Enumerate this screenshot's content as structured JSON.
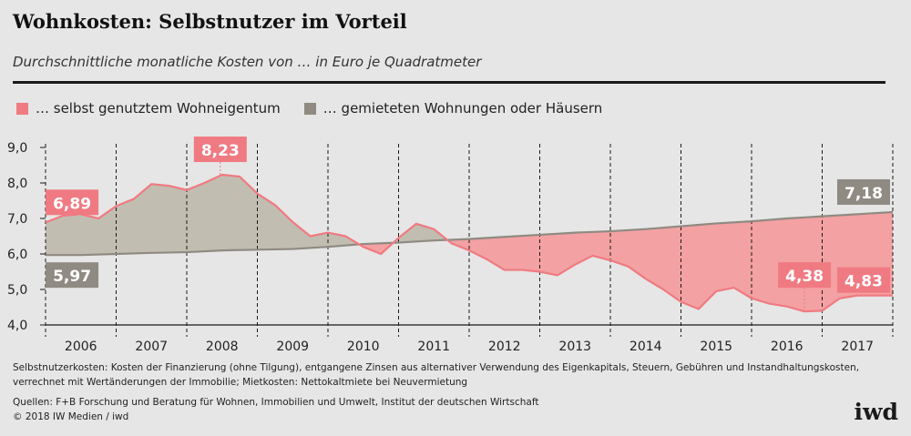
{
  "header": {
    "title": "Wohnkosten: Selbstnutzer im Vorteil",
    "subtitle": "Durchschnittliche monatliche Kosten von … in Euro je Quadratmeter"
  },
  "legend": {
    "owner_label": "… selbst genutztem Wohneigentum",
    "renter_label": "… gemieteten Wohnungen oder Häusern"
  },
  "colors": {
    "owner": "#f07a82",
    "owner_label_bg": "#f07a82",
    "renter": "#8f8a82",
    "fill_owner_higher": "#c2bdb1",
    "fill_renter_higher": "#f3a1a2",
    "background": "#e6e6e6"
  },
  "chart_data": {
    "type": "area",
    "title": "Wohnkosten: Selbstnutzer im Vorteil",
    "ylabel": "",
    "xlabel": "",
    "ylim": [
      4.0,
      9.0
    ],
    "y_ticks": [
      "4,0",
      "5,0",
      "6,0",
      "7,0",
      "8,0",
      "9,0"
    ],
    "x_range": [
      2005.625,
      2017.625
    ],
    "years": [
      "2006",
      "2007",
      "2008",
      "2009",
      "2010",
      "2011",
      "2012",
      "2013",
      "2014",
      "2015",
      "2016",
      "2017"
    ],
    "grid": "vertical dashed lines at year boundaries",
    "series": [
      {
        "name": "… selbst genutztem Wohneigentum",
        "x": [
          2005.625,
          2005.875,
          2006.125,
          2006.375,
          2006.625,
          2006.875,
          2007.125,
          2007.375,
          2007.625,
          2007.875,
          2008.125,
          2008.375,
          2008.625,
          2008.875,
          2009.125,
          2009.375,
          2009.625,
          2009.875,
          2010.125,
          2010.375,
          2010.625,
          2010.875,
          2011.125,
          2011.375,
          2011.625,
          2011.875,
          2012.125,
          2012.375,
          2012.625,
          2012.875,
          2013.125,
          2013.375,
          2013.625,
          2013.875,
          2014.125,
          2014.375,
          2014.625,
          2014.875,
          2015.125,
          2015.375,
          2015.625,
          2015.875,
          2016.125,
          2016.375,
          2016.625,
          2016.875,
          2017.125,
          2017.375,
          2017.625
        ],
        "values": [
          6.89,
          7.08,
          7.12,
          7.0,
          7.35,
          7.55,
          7.97,
          7.92,
          7.8,
          8.0,
          8.23,
          8.18,
          7.7,
          7.38,
          6.9,
          6.5,
          6.6,
          6.5,
          6.2,
          6.0,
          6.45,
          6.85,
          6.7,
          6.3,
          6.1,
          5.85,
          5.55,
          5.55,
          5.5,
          5.4,
          5.7,
          5.95,
          5.82,
          5.65,
          5.3,
          5.0,
          4.65,
          4.45,
          4.95,
          5.05,
          4.75,
          4.6,
          4.52,
          4.38,
          4.4,
          4.75,
          4.83,
          4.83,
          4.83
        ]
      },
      {
        "name": "… gemieteten Wohnungen oder Häusern",
        "x": [
          2005.625,
          2006.125,
          2006.625,
          2007.125,
          2007.625,
          2008.125,
          2008.625,
          2009.125,
          2009.625,
          2010.125,
          2010.625,
          2011.125,
          2011.625,
          2012.125,
          2012.625,
          2013.125,
          2013.625,
          2014.125,
          2014.625,
          2015.125,
          2015.625,
          2016.125,
          2016.625,
          2017.125,
          2017.625
        ],
        "values": [
          5.97,
          5.97,
          6.0,
          6.03,
          6.05,
          6.1,
          6.12,
          6.14,
          6.2,
          6.28,
          6.32,
          6.38,
          6.42,
          6.48,
          6.54,
          6.6,
          6.64,
          6.7,
          6.78,
          6.86,
          6.92,
          7.0,
          7.06,
          7.12,
          7.18
        ]
      }
    ],
    "data_labels": [
      {
        "text": "6,89",
        "series": "owner",
        "x": 2006.0,
        "y": 6.89
      },
      {
        "text": "8,23",
        "series": "owner",
        "x": 2008.1,
        "y": 8.23
      },
      {
        "text": "5,97",
        "series": "renter",
        "x": 2006.0,
        "y": 5.97
      },
      {
        "text": "7,18",
        "series": "renter",
        "x": 2017.625,
        "y": 7.18
      },
      {
        "text": "4,38",
        "series": "owner",
        "x": 2016.375,
        "y": 4.38
      },
      {
        "text": "4,83",
        "series": "owner",
        "x": 2017.625,
        "y": 4.83
      }
    ]
  },
  "footnotes": {
    "definition": "Selbstnutzerkosten: Kosten der Finanzierung (ohne Tilgung), entgangene Zinsen aus alternativer Verwendung des Eigenkapitals, Steuern, Gebühren und Instandhaltungskosten, verrechnet mit Wertänderungen der Immobilie; Mietkosten: Nettokaltmiete bei Neuvermietung",
    "sources": "Quellen: F+B Forschung und Beratung für Wohnen, Immobilien und Umwelt, Institut der deutschen Wirtschaft",
    "copyright": "© 2018 IW Medien / iwd"
  },
  "logo_text": "iwd"
}
